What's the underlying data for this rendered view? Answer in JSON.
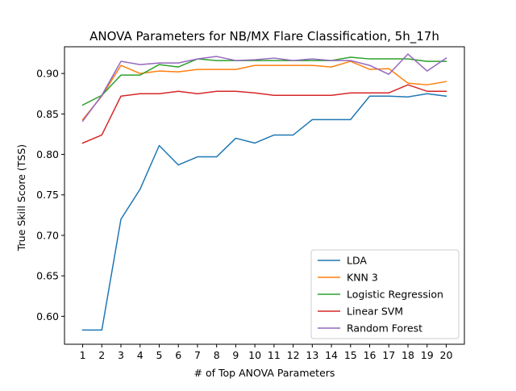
{
  "chart_data": {
    "type": "line",
    "title": "ANOVA Parameters for NB/MX Flare Classification, 5h_17h",
    "xlabel": "# of Top ANOVA Parameters",
    "ylabel": "True Skill Score (TSS)",
    "x": [
      1,
      2,
      3,
      4,
      5,
      6,
      7,
      8,
      9,
      10,
      11,
      12,
      13,
      14,
      15,
      16,
      17,
      18,
      19,
      20
    ],
    "xticks": [
      "1",
      "2",
      "3",
      "4",
      "5",
      "6",
      "7",
      "8",
      "9",
      "10",
      "11",
      "12",
      "13",
      "14",
      "15",
      "16",
      "17",
      "18",
      "19",
      "20"
    ],
    "xlim": [
      0.05,
      20.95
    ],
    "ylim": [
      0.5655,
      0.933
    ],
    "yticks": [
      0.6,
      0.65,
      0.7,
      0.75,
      0.8,
      0.85,
      0.9
    ],
    "ytick_labels": [
      "0.60",
      "0.65",
      "0.70",
      "0.75",
      "0.80",
      "0.85",
      "0.90"
    ],
    "grid": false,
    "legend_position": "lower-right",
    "series": [
      {
        "name": "LDA",
        "color": "#1f77b4",
        "values": [
          0.583,
          0.583,
          0.72,
          0.757,
          0.811,
          0.787,
          0.797,
          0.797,
          0.82,
          0.814,
          0.824,
          0.824,
          0.843,
          0.843,
          0.843,
          0.872,
          0.872,
          0.871,
          0.875,
          0.872
        ]
      },
      {
        "name": "KNN 3",
        "color": "#ff7f0e",
        "values": [
          0.843,
          0.872,
          0.91,
          0.9,
          0.903,
          0.902,
          0.905,
          0.905,
          0.905,
          0.91,
          0.91,
          0.91,
          0.91,
          0.908,
          0.915,
          0.905,
          0.906,
          0.888,
          0.886,
          0.89
        ]
      },
      {
        "name": "Logistic Regression",
        "color": "#2ca02c",
        "values": [
          0.861,
          0.873,
          0.898,
          0.898,
          0.911,
          0.908,
          0.918,
          0.916,
          0.916,
          0.916,
          0.916,
          0.916,
          0.916,
          0.916,
          0.92,
          0.918,
          0.918,
          0.918,
          0.915,
          0.915
        ]
      },
      {
        "name": "Linear SVM",
        "color": "#d62728",
        "values": [
          0.814,
          0.824,
          0.872,
          0.875,
          0.875,
          0.878,
          0.875,
          0.878,
          0.878,
          0.876,
          0.873,
          0.873,
          0.873,
          0.873,
          0.876,
          0.876,
          0.876,
          0.886,
          0.878,
          0.878
        ]
      },
      {
        "name": "Random Forest",
        "color": "#9467bd",
        "values": [
          0.841,
          0.873,
          0.915,
          0.911,
          0.913,
          0.913,
          0.918,
          0.921,
          0.916,
          0.917,
          0.919,
          0.916,
          0.918,
          0.916,
          0.916,
          0.91,
          0.899,
          0.924,
          0.903,
          0.919
        ]
      }
    ]
  }
}
